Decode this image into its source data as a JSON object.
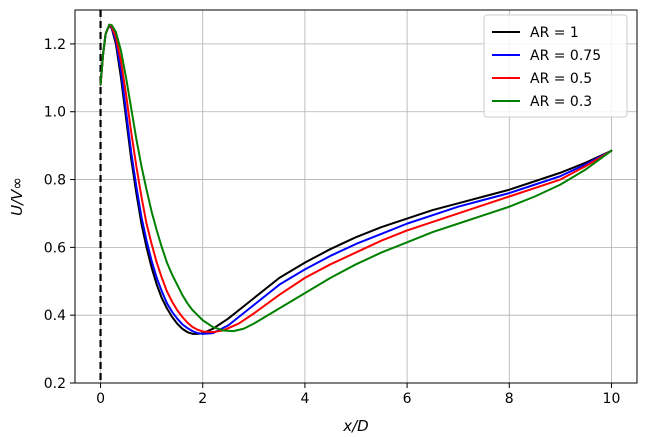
{
  "chart_data": {
    "type": "line",
    "xlabel": "x/D",
    "ylabel": "U/V∞",
    "xlim": [
      -0.5,
      10.5
    ],
    "ylim": [
      0.2,
      1.3
    ],
    "xticks": [
      0,
      2,
      4,
      6,
      8,
      10
    ],
    "yticks": [
      0.2,
      0.4,
      0.6,
      0.8,
      1.0,
      1.2
    ],
    "xtick_labels": [
      "0",
      "2",
      "4",
      "6",
      "8",
      "10"
    ],
    "ytick_labels": [
      "0.2",
      "0.4",
      "0.6",
      "0.8",
      "1.0",
      "1.2"
    ],
    "grid": true,
    "legend_position": "top-right",
    "reference_line": {
      "x": 0,
      "style": "dashed",
      "color": "#000000"
    },
    "series": [
      {
        "name": "AR = 1",
        "color": "#000000",
        "points": [
          [
            0,
            1.08
          ],
          [
            0.05,
            1.17
          ],
          [
            0.1,
            1.23
          ],
          [
            0.17,
            1.255
          ],
          [
            0.22,
            1.245
          ],
          [
            0.3,
            1.2
          ],
          [
            0.4,
            1.1
          ],
          [
            0.5,
            0.98
          ],
          [
            0.6,
            0.86
          ],
          [
            0.7,
            0.76
          ],
          [
            0.8,
            0.67
          ],
          [
            0.9,
            0.6
          ],
          [
            1.0,
            0.54
          ],
          [
            1.1,
            0.49
          ],
          [
            1.2,
            0.45
          ],
          [
            1.3,
            0.42
          ],
          [
            1.4,
            0.395
          ],
          [
            1.5,
            0.375
          ],
          [
            1.6,
            0.36
          ],
          [
            1.7,
            0.35
          ],
          [
            1.8,
            0.345
          ],
          [
            1.9,
            0.345
          ],
          [
            2.0,
            0.347
          ],
          [
            2.2,
            0.36
          ],
          [
            2.5,
            0.39
          ],
          [
            3.0,
            0.45
          ],
          [
            3.5,
            0.51
          ],
          [
            4.0,
            0.555
          ],
          [
            4.5,
            0.595
          ],
          [
            5.0,
            0.63
          ],
          [
            5.5,
            0.66
          ],
          [
            6.0,
            0.685
          ],
          [
            6.5,
            0.71
          ],
          [
            7.0,
            0.73
          ],
          [
            7.5,
            0.75
          ],
          [
            8.0,
            0.77
          ],
          [
            8.5,
            0.795
          ],
          [
            9.0,
            0.82
          ],
          [
            9.5,
            0.85
          ],
          [
            10.0,
            0.885
          ]
        ]
      },
      {
        "name": "AR = 0.75",
        "color": "#0000ff",
        "points": [
          [
            0,
            1.08
          ],
          [
            0.05,
            1.17
          ],
          [
            0.1,
            1.23
          ],
          [
            0.17,
            1.255
          ],
          [
            0.22,
            1.247
          ],
          [
            0.3,
            1.21
          ],
          [
            0.4,
            1.12
          ],
          [
            0.5,
            1.0
          ],
          [
            0.6,
            0.88
          ],
          [
            0.7,
            0.78
          ],
          [
            0.8,
            0.69
          ],
          [
            0.9,
            0.62
          ],
          [
            1.0,
            0.56
          ],
          [
            1.1,
            0.51
          ],
          [
            1.2,
            0.47
          ],
          [
            1.3,
            0.435
          ],
          [
            1.4,
            0.41
          ],
          [
            1.5,
            0.39
          ],
          [
            1.6,
            0.373
          ],
          [
            1.7,
            0.362
          ],
          [
            1.8,
            0.353
          ],
          [
            1.9,
            0.347
          ],
          [
            2.0,
            0.345
          ],
          [
            2.2,
            0.347
          ],
          [
            2.5,
            0.37
          ],
          [
            3.0,
            0.43
          ],
          [
            3.5,
            0.49
          ],
          [
            4.0,
            0.535
          ],
          [
            4.5,
            0.575
          ],
          [
            5.0,
            0.61
          ],
          [
            5.5,
            0.64
          ],
          [
            6.0,
            0.67
          ],
          [
            6.5,
            0.695
          ],
          [
            7.0,
            0.72
          ],
          [
            7.5,
            0.74
          ],
          [
            8.0,
            0.76
          ],
          [
            8.5,
            0.785
          ],
          [
            9.0,
            0.81
          ],
          [
            9.5,
            0.845
          ],
          [
            10.0,
            0.885
          ]
        ]
      },
      {
        "name": "AR = 0.5",
        "color": "#ff0000",
        "points": [
          [
            0,
            1.08
          ],
          [
            0.05,
            1.17
          ],
          [
            0.1,
            1.23
          ],
          [
            0.17,
            1.255
          ],
          [
            0.22,
            1.25
          ],
          [
            0.3,
            1.22
          ],
          [
            0.4,
            1.15
          ],
          [
            0.5,
            1.05
          ],
          [
            0.6,
            0.94
          ],
          [
            0.7,
            0.84
          ],
          [
            0.8,
            0.75
          ],
          [
            0.9,
            0.67
          ],
          [
            1.0,
            0.61
          ],
          [
            1.1,
            0.555
          ],
          [
            1.2,
            0.51
          ],
          [
            1.3,
            0.47
          ],
          [
            1.4,
            0.44
          ],
          [
            1.5,
            0.415
          ],
          [
            1.6,
            0.395
          ],
          [
            1.7,
            0.378
          ],
          [
            1.8,
            0.365
          ],
          [
            1.9,
            0.357
          ],
          [
            2.0,
            0.352
          ],
          [
            2.2,
            0.35
          ],
          [
            2.4,
            0.355
          ],
          [
            2.7,
            0.375
          ],
          [
            3.0,
            0.405
          ],
          [
            3.5,
            0.46
          ],
          [
            4.0,
            0.51
          ],
          [
            4.5,
            0.55
          ],
          [
            5.0,
            0.585
          ],
          [
            5.5,
            0.62
          ],
          [
            6.0,
            0.65
          ],
          [
            6.5,
            0.675
          ],
          [
            7.0,
            0.7
          ],
          [
            7.5,
            0.725
          ],
          [
            8.0,
            0.75
          ],
          [
            8.5,
            0.775
          ],
          [
            9.0,
            0.8
          ],
          [
            9.5,
            0.84
          ],
          [
            10.0,
            0.885
          ]
        ]
      },
      {
        "name": "AR = 0.3",
        "color": "#008000",
        "points": [
          [
            0,
            1.08
          ],
          [
            0.05,
            1.17
          ],
          [
            0.1,
            1.23
          ],
          [
            0.17,
            1.257
          ],
          [
            0.22,
            1.255
          ],
          [
            0.3,
            1.235
          ],
          [
            0.4,
            1.18
          ],
          [
            0.5,
            1.1
          ],
          [
            0.6,
            1.01
          ],
          [
            0.7,
            0.92
          ],
          [
            0.8,
            0.84
          ],
          [
            0.9,
            0.77
          ],
          [
            1.0,
            0.705
          ],
          [
            1.1,
            0.65
          ],
          [
            1.2,
            0.6
          ],
          [
            1.3,
            0.555
          ],
          [
            1.4,
            0.52
          ],
          [
            1.5,
            0.49
          ],
          [
            1.6,
            0.46
          ],
          [
            1.7,
            0.435
          ],
          [
            1.8,
            0.415
          ],
          [
            1.9,
            0.4
          ],
          [
            2.0,
            0.385
          ],
          [
            2.2,
            0.365
          ],
          [
            2.4,
            0.355
          ],
          [
            2.6,
            0.353
          ],
          [
            2.8,
            0.36
          ],
          [
            3.0,
            0.375
          ],
          [
            3.5,
            0.42
          ],
          [
            4.0,
            0.465
          ],
          [
            4.5,
            0.51
          ],
          [
            5.0,
            0.55
          ],
          [
            5.5,
            0.585
          ],
          [
            6.0,
            0.615
          ],
          [
            6.5,
            0.645
          ],
          [
            7.0,
            0.67
          ],
          [
            7.5,
            0.695
          ],
          [
            8.0,
            0.72
          ],
          [
            8.5,
            0.75
          ],
          [
            9.0,
            0.785
          ],
          [
            9.5,
            0.83
          ],
          [
            10.0,
            0.885
          ]
        ]
      }
    ]
  }
}
